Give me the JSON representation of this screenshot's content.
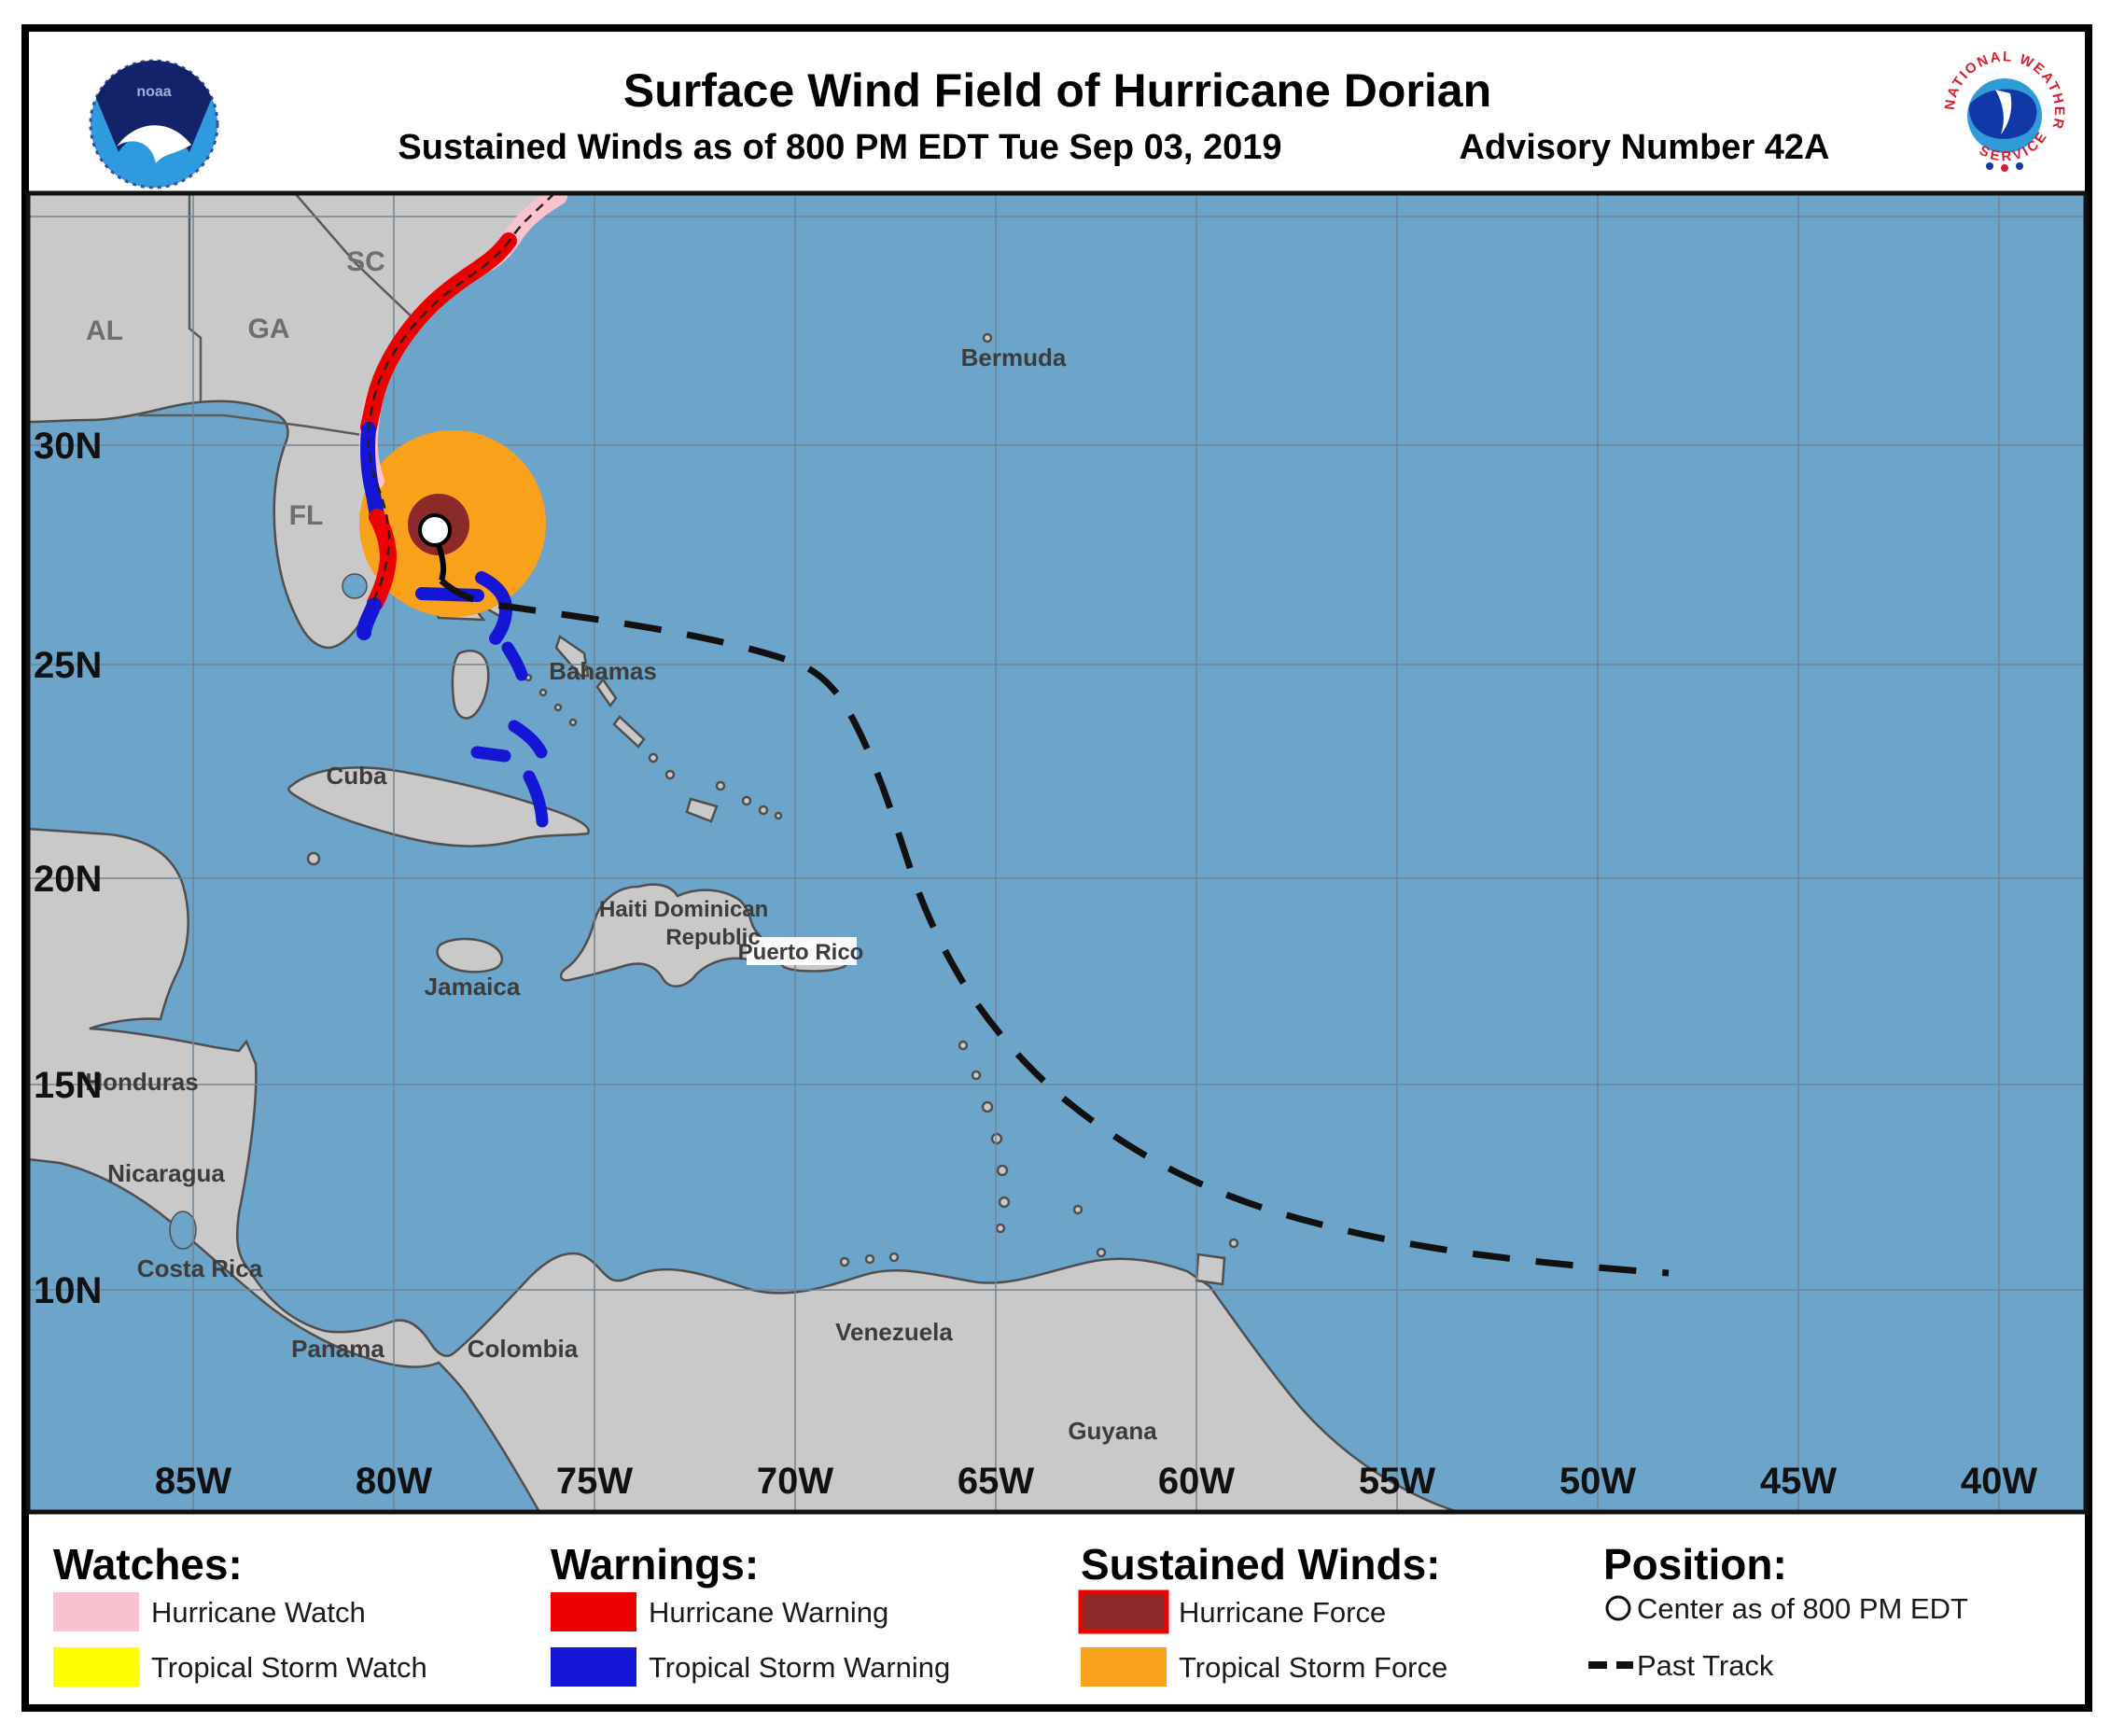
{
  "header": {
    "title": "Surface Wind Field of Hurricane Dorian",
    "subtitle_left": "Sustained Winds as of 800 PM EDT Tue Sep 03, 2019",
    "subtitle_right": "Advisory Number 42A"
  },
  "logos": {
    "noaa_text": "noaa",
    "nws_text_top": "NATIONAL WEATHER",
    "nws_text_bottom": "SERVICE"
  },
  "map": {
    "lat_labels": [
      "30N",
      "25N",
      "20N",
      "15N",
      "10N"
    ],
    "lon_labels": [
      "85W",
      "80W",
      "75W",
      "70W",
      "65W",
      "60W",
      "55W",
      "50W",
      "45W",
      "40W"
    ],
    "places": {
      "bermuda": "Bermuda",
      "bahamas": "Bahamas",
      "cuba": "Cuba",
      "jamaica": "Jamaica",
      "haiti": "Haiti",
      "dominican": "Dominican",
      "republic": "Republic",
      "puerto_rico": "Puerto Rico",
      "colombia": "Colombia",
      "venezuela": "Venezuela",
      "guyana": "Guyana",
      "panama": "Panama",
      "costa_rica": "Costa Rica",
      "nicaragua": "Nicaragua",
      "honduras": "Honduras",
      "sc": "SC",
      "ga": "GA",
      "al": "AL",
      "fl": "FL"
    }
  },
  "colors": {
    "ocean": "#6DA4C9",
    "land": "#C9C9C9",
    "land_border": "#4F4F4F",
    "grid": "#6F8496",
    "watch_pink": "#F9C2CE",
    "watch_yellow": "#FFFF00",
    "warning_red": "#EE0000",
    "warning_blue": "#1515D6",
    "hurricane_force": "#8C2A2A",
    "tropical_storm_force": "#F9A11B",
    "track_black": "#111111",
    "frame_black": "#000000",
    "label_dark": "#3C3C3C",
    "state_gray": "#6E6E6E"
  },
  "legend": {
    "watches": {
      "header": "Watches:",
      "items": [
        {
          "label": "Hurricane Watch",
          "color": "#F9C2CE"
        },
        {
          "label": "Tropical Storm Watch",
          "color": "#FFFF00"
        }
      ]
    },
    "warnings": {
      "header": "Warnings:",
      "items": [
        {
          "label": "Hurricane Warning",
          "color": "#EE0000"
        },
        {
          "label": "Tropical Storm Warning",
          "color": "#1515D6"
        }
      ]
    },
    "sustained_winds": {
      "header": "Sustained Winds:",
      "items": [
        {
          "label": "Hurricane Force",
          "color": "#8C2A2A",
          "border": "#EE0000"
        },
        {
          "label": "Tropical Storm Force",
          "color": "#F9A11B"
        }
      ]
    },
    "position": {
      "header": "Position:",
      "items": [
        {
          "label": "Center as of 800 PM EDT",
          "symbol": "circle"
        },
        {
          "label": "Past Track",
          "symbol": "dash"
        }
      ]
    }
  }
}
